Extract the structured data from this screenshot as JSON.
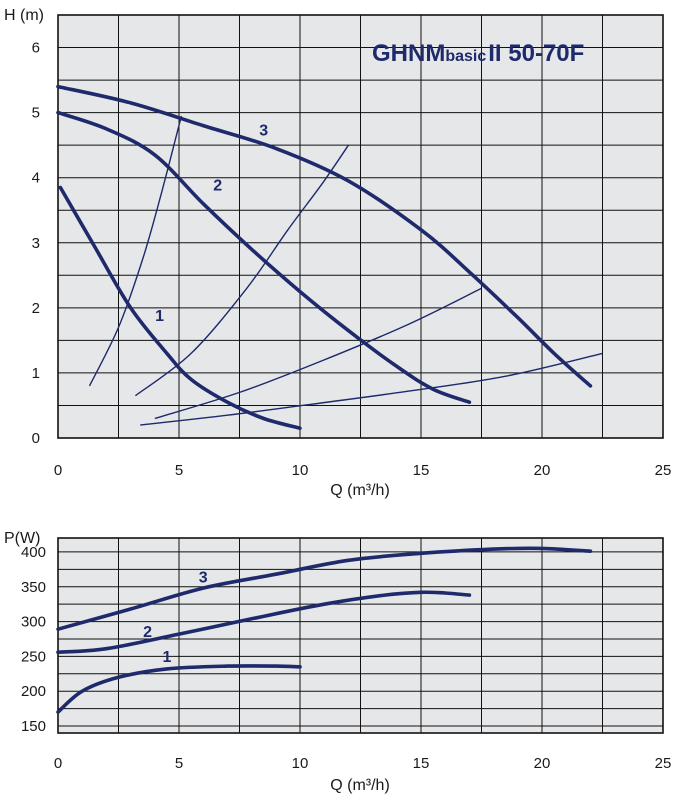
{
  "chart_data": [
    {
      "type": "line",
      "title": {
        "main": "GHNM",
        "sub": "basic",
        "tail": "II  50-70F"
      },
      "ylabel": "H (m)",
      "xlabel": "Q (m³/h)",
      "xlim": [
        0,
        25
      ],
      "ylim": [
        0,
        6.5
      ],
      "xticks": [
        0,
        5,
        10,
        15,
        20,
        25
      ],
      "yticks": [
        0,
        1,
        2,
        3,
        4,
        5,
        6
      ],
      "grid": true,
      "series": [
        {
          "name": "1",
          "points": [
            [
              0.1,
              3.85
            ],
            [
              1.5,
              2.95
            ],
            [
              3.0,
              2.0
            ],
            [
              4.5,
              1.3
            ],
            [
              5.5,
              0.9
            ],
            [
              7.0,
              0.55
            ],
            [
              8.5,
              0.3
            ],
            [
              10.0,
              0.15
            ]
          ]
        },
        {
          "name": "2",
          "points": [
            [
              0.0,
              5.0
            ],
            [
              2.0,
              4.75
            ],
            [
              4.0,
              4.35
            ],
            [
              6.0,
              3.6
            ],
            [
              8.0,
              2.9
            ],
            [
              10.0,
              2.25
            ],
            [
              12.0,
              1.65
            ],
            [
              14.0,
              1.1
            ],
            [
              15.5,
              0.75
            ],
            [
              17.0,
              0.55
            ]
          ]
        },
        {
          "name": "3",
          "points": [
            [
              0.0,
              5.4
            ],
            [
              3.0,
              5.15
            ],
            [
              6.0,
              4.8
            ],
            [
              9.0,
              4.45
            ],
            [
              12.0,
              3.95
            ],
            [
              15.0,
              3.2
            ],
            [
              17.0,
              2.55
            ],
            [
              19.0,
              1.85
            ],
            [
              20.5,
              1.3
            ],
            [
              22.0,
              0.8
            ]
          ]
        }
      ],
      "system_curves": [
        {
          "points": [
            [
              1.3,
              0.8
            ],
            [
              2.5,
              1.7
            ],
            [
              3.5,
              2.75
            ],
            [
              4.3,
              3.8
            ],
            [
              5.1,
              4.95
            ]
          ]
        },
        {
          "points": [
            [
              3.2,
              0.65
            ],
            [
              5.5,
              1.3
            ],
            [
              7.8,
              2.3
            ],
            [
              9.5,
              3.2
            ],
            [
              10.9,
              3.9
            ],
            [
              12.0,
              4.5
            ]
          ]
        },
        {
          "points": [
            [
              4.0,
              0.3
            ],
            [
              7.5,
              0.7
            ],
            [
              11.0,
              1.2
            ],
            [
              14.5,
              1.75
            ],
            [
              17.5,
              2.3
            ]
          ]
        },
        {
          "points": [
            [
              3.4,
              0.2
            ],
            [
              7.0,
              0.35
            ],
            [
              10.5,
              0.52
            ],
            [
              14.5,
              0.72
            ],
            [
              18.5,
              0.95
            ],
            [
              22.5,
              1.3
            ]
          ]
        }
      ],
      "curve_labels": [
        {
          "text": "1",
          "x": 4.2,
          "y": 1.8
        },
        {
          "text": "2",
          "x": 6.6,
          "y": 3.8
        },
        {
          "text": "3",
          "x": 8.5,
          "y": 4.65
        }
      ]
    },
    {
      "type": "line",
      "ylabel": "P(W)",
      "xlabel": "Q (m³/h)",
      "xlim": [
        0,
        25
      ],
      "ylim": [
        140,
        420
      ],
      "xticks": [
        0,
        5,
        10,
        15,
        20,
        25
      ],
      "yticks": [
        150,
        200,
        250,
        300,
        350,
        400
      ],
      "grid": true,
      "series": [
        {
          "name": "1",
          "points": [
            [
              0.0,
              170
            ],
            [
              1.0,
              200
            ],
            [
              2.5,
              220
            ],
            [
              4.5,
              232
            ],
            [
              7.0,
              236
            ],
            [
              9.0,
              236
            ],
            [
              10.0,
              235
            ]
          ]
        },
        {
          "name": "2",
          "points": [
            [
              0.0,
              256
            ],
            [
              2.0,
              261
            ],
            [
              5.0,
              282
            ],
            [
              8.0,
              304
            ],
            [
              11.0,
              325
            ],
            [
              13.5,
              338
            ],
            [
              15.0,
              342
            ],
            [
              16.0,
              341
            ],
            [
              17.0,
              338
            ]
          ]
        },
        {
          "name": "3",
          "points": [
            [
              0.0,
              289
            ],
            [
              3.0,
              318
            ],
            [
              6.0,
              348
            ],
            [
              9.0,
              368
            ],
            [
              12.0,
              388
            ],
            [
              15.0,
              398
            ],
            [
              18.0,
              404
            ],
            [
              20.0,
              405
            ],
            [
              22.0,
              401
            ]
          ]
        }
      ],
      "curve_labels": [
        {
          "text": "1",
          "x": 4.5,
          "y": 242
        },
        {
          "text": "2",
          "x": 3.7,
          "y": 278
        },
        {
          "text": "3",
          "x": 6.0,
          "y": 356
        }
      ]
    }
  ]
}
